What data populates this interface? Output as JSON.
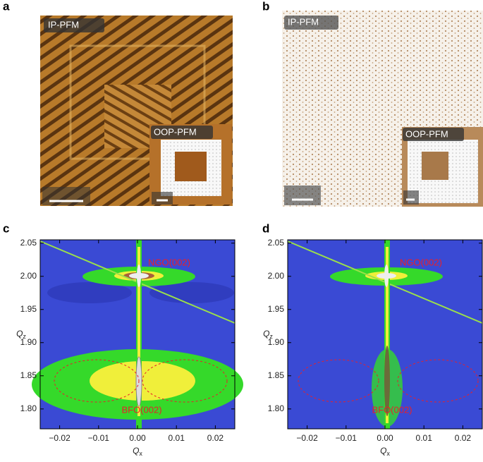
{
  "panels": [
    {
      "label": "a",
      "image_label": "IP-PFM",
      "inset_label": "OOP-PFM"
    },
    {
      "label": "b",
      "image_label": "IP-PFM",
      "inset_label": "OOP-PFM"
    },
    {
      "label": "c",
      "xlabel": {
        "main": "Q",
        "sub": "x"
      },
      "ylabel": {
        "main": "Q",
        "sub": "z"
      },
      "annotations": [
        "NGO(002)",
        "BFO(002)"
      ],
      "xlim": [
        -0.025,
        0.025
      ],
      "ylim": [
        1.77,
        2.055
      ],
      "xticks": [
        {
          "value": -0.02,
          "label": "−0.02"
        },
        {
          "value": -0.01,
          "label": "−0.01"
        },
        {
          "value": 0,
          "label": "0.00"
        },
        0.01,
        0.02
      ],
      "yticks": [
        {
          "value": 1.8,
          "label": "1.80"
        },
        1.85,
        {
          "value": 1.9,
          "label": "1.90"
        },
        1.95,
        {
          "value": 2,
          "label": "2.00"
        },
        2.05
      ]
    },
    {
      "label": "d",
      "xlabel": {
        "main": "Q",
        "sub": "x"
      },
      "ylabel": {
        "main": "Q",
        "sub": "z"
      },
      "annotations": [
        "NGO(002)",
        "BFO(002)"
      ],
      "xlim": [
        -0.025,
        0.025
      ],
      "ylim": [
        1.77,
        2.055
      ],
      "xticks": [
        {
          "value": -0.02,
          "label": "−0.02"
        },
        {
          "value": -0.01,
          "label": "−0.01"
        },
        {
          "value": 0,
          "label": "0.00"
        },
        0.01,
        0.02
      ],
      "yticks": [
        {
          "value": 1.8,
          "label": "1.80"
        },
        1.85,
        {
          "value": 1.9,
          "label": "1.90"
        },
        1.95,
        {
          "value": 2,
          "label": "2.00"
        },
        2.05
      ]
    }
  ]
}
